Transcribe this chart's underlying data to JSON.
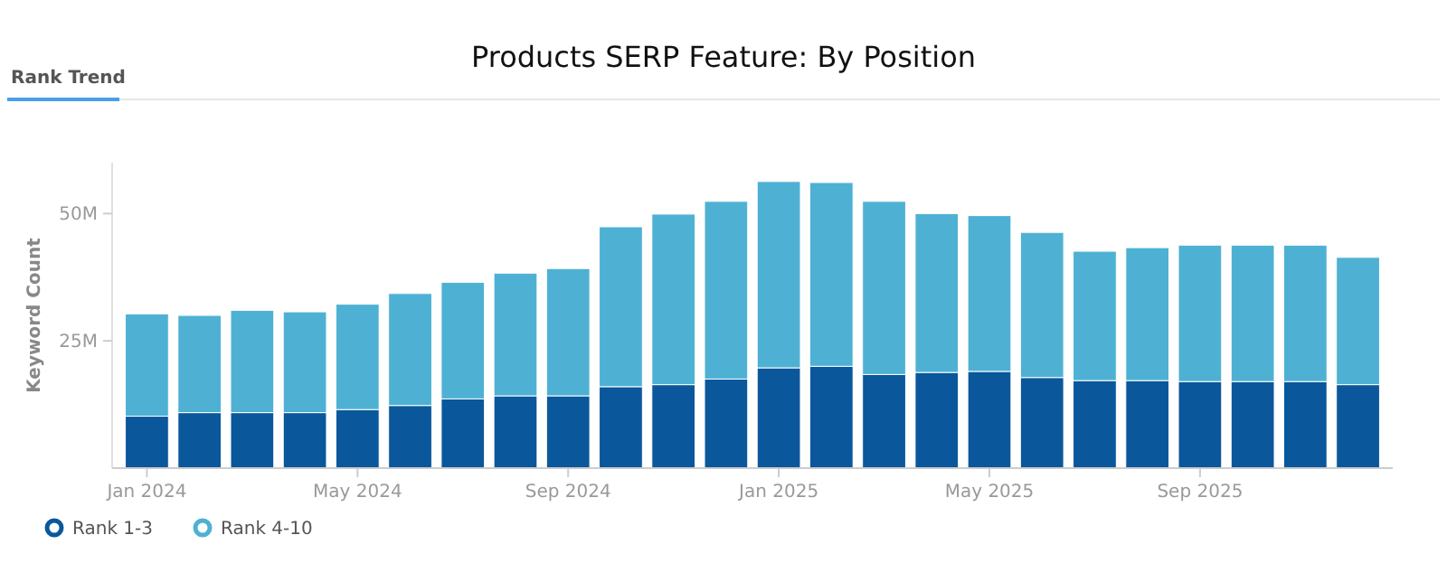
{
  "chart_data": {
    "type": "bar",
    "title": "Products SERP Feature: By Position",
    "ylabel": "Keyword Count",
    "annotations": [
      "Rank Trend"
    ],
    "categories": [
      "Jan 2024",
      null,
      null,
      null,
      "May 2024",
      null,
      null,
      null,
      "Sep 2024",
      null,
      null,
      null,
      "Jan 2025",
      null,
      null,
      null,
      "May 2025",
      null,
      null,
      null,
      "Sep 2025",
      null,
      null,
      null
    ],
    "stacked": true,
    "series": [
      {
        "name": "Rank 1-3",
        "color": "#0a579c",
        "values": [
          10.2,
          10.9,
          10.9,
          10.9,
          11.5,
          12.3,
          13.6,
          14.2,
          14.2,
          16.0,
          16.4,
          17.5,
          19.7,
          20.0,
          18.4,
          18.8,
          19.0,
          17.8,
          17.2,
          17.2,
          17.0,
          17.0,
          17.0,
          16.4
        ]
      },
      {
        "name": "Rank 4-10",
        "color": "#4eb1d3",
        "values": [
          20.1,
          19.1,
          20.1,
          19.8,
          20.7,
          22.0,
          22.9,
          24.1,
          25.0,
          31.4,
          33.5,
          34.9,
          36.6,
          36.1,
          34.0,
          31.2,
          30.6,
          28.5,
          25.4,
          26.1,
          26.8,
          26.8,
          26.8,
          25.0
        ]
      }
    ],
    "ylim": [
      0,
      60
    ],
    "yticks": [
      {
        "value": 25,
        "label": "25M"
      },
      {
        "value": 50,
        "label": "50M"
      }
    ],
    "grid": false,
    "legend": "bottom left",
    "marker": "circle"
  }
}
